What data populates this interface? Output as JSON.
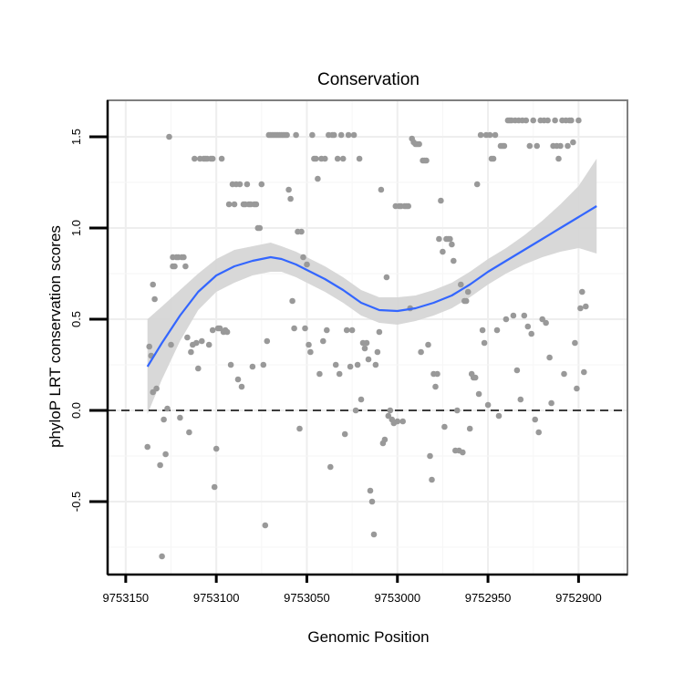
{
  "chart_data": {
    "type": "scatter",
    "title": "Conservation",
    "xlabel": "Genomic Position",
    "ylabel": "phyloP LRT conservation scores",
    "x_reversed": true,
    "xlim": [
      9753160,
      9752873
    ],
    "ylim": [
      -0.9,
      1.7
    ],
    "x_ticks": [
      9753150,
      9753100,
      9753050,
      9753000,
      9752950,
      9752900
    ],
    "x_tick_labels": [
      "9753150",
      "9753100",
      "9753050",
      "9753000",
      "9752950",
      "9752900"
    ],
    "y_ticks": [
      -0.5,
      0.0,
      0.5,
      1.0,
      1.5
    ],
    "y_tick_labels": [
      "-0.5",
      "0.0",
      "0.5",
      "1.0",
      "1.5"
    ],
    "reference_line": {
      "y": 0.0,
      "style": "dashed"
    },
    "grid": true,
    "colors": {
      "points": "#999999",
      "smooth": "#3366ff",
      "band": "#d4d4d4",
      "border": "#7f7f7f"
    },
    "points": [
      [
        9753138,
        -0.2
      ],
      [
        9753137,
        0.35
      ],
      [
        9753136,
        0.3
      ],
      [
        9753135,
        0.1
      ],
      [
        9753135,
        0.69
      ],
      [
        9753134,
        0.61
      ],
      [
        9753133,
        0.12
      ],
      [
        9753131,
        -0.3
      ],
      [
        9753130,
        -0.8
      ],
      [
        9753129,
        -0.05
      ],
      [
        9753128,
        -0.24
      ],
      [
        9753127,
        0.01
      ],
      [
        9753126,
        1.5
      ],
      [
        9753125,
        0.36
      ],
      [
        9753124,
        0.79
      ],
      [
        9753124,
        0.84
      ],
      [
        9753123,
        0.79
      ],
      [
        9753122,
        0.84
      ],
      [
        9753121,
        0.84
      ],
      [
        9753120,
        -0.04
      ],
      [
        9753119,
        0.84
      ],
      [
        9753118,
        0.84
      ],
      [
        9753117,
        0.79
      ],
      [
        9753116,
        0.4
      ],
      [
        9753115,
        -0.12
      ],
      [
        9753114,
        0.32
      ],
      [
        9753113,
        0.36
      ],
      [
        9753112,
        1.38
      ],
      [
        9753111,
        0.37
      ],
      [
        9753110,
        0.23
      ],
      [
        9753109,
        1.38
      ],
      [
        9753108,
        0.38
      ],
      [
        9753107,
        1.38
      ],
      [
        9753106,
        1.38
      ],
      [
        9753105,
        1.38
      ],
      [
        9753104,
        0.36
      ],
      [
        9753103,
        1.38
      ],
      [
        9753102,
        1.38
      ],
      [
        9753102,
        0.44
      ],
      [
        9753101,
        -0.42
      ],
      [
        9753100,
        -0.21
      ],
      [
        9753099,
        0.45
      ],
      [
        9753098,
        0.45
      ],
      [
        9753097,
        1.38
      ],
      [
        9753096,
        0.43
      ],
      [
        9753095,
        0.44
      ],
      [
        9753094,
        0.43
      ],
      [
        9753093,
        1.13
      ],
      [
        9753092,
        0.25
      ],
      [
        9753091,
        1.24
      ],
      [
        9753090,
        1.13
      ],
      [
        9753089,
        1.24
      ],
      [
        9753088,
        0.17
      ],
      [
        9753087,
        1.24
      ],
      [
        9753086,
        0.13
      ],
      [
        9753085,
        1.13
      ],
      [
        9753084,
        1.13
      ],
      [
        9753083,
        1.24
      ],
      [
        9753082,
        1.13
      ],
      [
        9753081,
        1.13
      ],
      [
        9753080,
        0.24
      ],
      [
        9753079,
        1.13
      ],
      [
        9753078,
        1.13
      ],
      [
        9753077,
        1.0
      ],
      [
        9753076,
        1.0
      ],
      [
        9753075,
        1.24
      ],
      [
        9753074,
        0.25
      ],
      [
        9753073,
        -0.63
      ],
      [
        9753072,
        0.38
      ],
      [
        9753071,
        1.51
      ],
      [
        9753070,
        1.51
      ],
      [
        9753069,
        1.51
      ],
      [
        9753068,
        1.51
      ],
      [
        9753067,
        1.51
      ],
      [
        9753066,
        1.51
      ],
      [
        9753065,
        1.51
      ],
      [
        9753064,
        1.51
      ],
      [
        9753063,
        1.51
      ],
      [
        9753062,
        1.51
      ],
      [
        9753061,
        1.51
      ],
      [
        9753060,
        1.21
      ],
      [
        9753059,
        1.16
      ],
      [
        9753058,
        0.6
      ],
      [
        9753057,
        0.45
      ],
      [
        9753056,
        1.51
      ],
      [
        9753055,
        0.98
      ],
      [
        9753054,
        -0.1
      ],
      [
        9753053,
        0.98
      ],
      [
        9753052,
        0.84
      ],
      [
        9753051,
        0.45
      ],
      [
        9753050,
        0.8
      ],
      [
        9753049,
        0.36
      ],
      [
        9753048,
        0.32
      ],
      [
        9753047,
        1.51
      ],
      [
        9753046,
        1.38
      ],
      [
        9753045,
        1.38
      ],
      [
        9753044,
        1.27
      ],
      [
        9753043,
        0.2
      ],
      [
        9753042,
        1.38
      ],
      [
        9753041,
        0.38
      ],
      [
        9753040,
        1.38
      ],
      [
        9753039,
        0.44
      ],
      [
        9753038,
        1.51
      ],
      [
        9753037,
        -0.31
      ],
      [
        9753036,
        1.51
      ],
      [
        9753035,
        1.51
      ],
      [
        9753034,
        0.25
      ],
      [
        9753033,
        1.38
      ],
      [
        9753032,
        0.2
      ],
      [
        9753031,
        1.51
      ],
      [
        9753030,
        1.38
      ],
      [
        9753029,
        -0.13
      ],
      [
        9753028,
        0.44
      ],
      [
        9753027,
        1.51
      ],
      [
        9753026,
        0.24
      ],
      [
        9753025,
        0.44
      ],
      [
        9753024,
        1.51
      ],
      [
        9753023,
        0.0
      ],
      [
        9753022,
        0.25
      ],
      [
        9753021,
        1.38
      ],
      [
        9753020,
        0.06
      ],
      [
        9753019,
        0.37
      ],
      [
        9753018,
        0.34
      ],
      [
        9753017,
        0.37
      ],
      [
        9753016,
        0.28
      ],
      [
        9753015,
        -0.44
      ],
      [
        9753014,
        -0.5
      ],
      [
        9753013,
        -0.68
      ],
      [
        9753012,
        0.25
      ],
      [
        9753011,
        0.32
      ],
      [
        9753010,
        0.43
      ],
      [
        9753009,
        1.21
      ],
      [
        9753008,
        -0.18
      ],
      [
        9753007,
        -0.16
      ],
      [
        9753006,
        0.73
      ],
      [
        9753005,
        -0.03
      ],
      [
        9753004,
        0.0
      ],
      [
        9753003,
        -0.05
      ],
      [
        9753002,
        -0.07
      ],
      [
        9753001,
        1.12
      ],
      [
        9753000,
        -0.06
      ],
      [
        9752999,
        1.12
      ],
      [
        9752998,
        1.12
      ],
      [
        9752997,
        -0.06
      ],
      [
        9752996,
        1.12
      ],
      [
        9752995,
        1.12
      ],
      [
        9752994,
        1.12
      ],
      [
        9752993,
        0.56
      ],
      [
        9752992,
        1.49
      ],
      [
        9752991,
        1.47
      ],
      [
        9752990,
        1.46
      ],
      [
        9752989,
        1.46
      ],
      [
        9752988,
        1.46
      ],
      [
        9752987,
        0.32
      ],
      [
        9752986,
        1.37
      ],
      [
        9752985,
        1.37
      ],
      [
        9752984,
        1.37
      ],
      [
        9752983,
        0.36
      ],
      [
        9752982,
        -0.25
      ],
      [
        9752981,
        -0.38
      ],
      [
        9752980,
        0.2
      ],
      [
        9752979,
        0.13
      ],
      [
        9752978,
        0.2
      ],
      [
        9752977,
        0.94
      ],
      [
        9752976,
        1.15
      ],
      [
        9752975,
        0.87
      ],
      [
        9752974,
        -0.09
      ],
      [
        9752973,
        0.94
      ],
      [
        9752972,
        0.94
      ],
      [
        9752971,
        0.94
      ],
      [
        9752970,
        0.91
      ],
      [
        9752969,
        0.82
      ],
      [
        9752968,
        -0.22
      ],
      [
        9752967,
        0.0
      ],
      [
        9752966,
        -0.22
      ],
      [
        9752965,
        0.69
      ],
      [
        9752964,
        -0.23
      ],
      [
        9752963,
        0.6
      ],
      [
        9752962,
        0.6
      ],
      [
        9752961,
        0.65
      ],
      [
        9752960,
        -0.1
      ],
      [
        9752959,
        0.2
      ],
      [
        9752958,
        0.18
      ],
      [
        9752957,
        0.18
      ],
      [
        9752956,
        1.24
      ],
      [
        9752955,
        0.09
      ],
      [
        9752954,
        1.51
      ],
      [
        9752953,
        0.44
      ],
      [
        9752952,
        0.37
      ],
      [
        9752951,
        1.51
      ],
      [
        9752950,
        0.03
      ],
      [
        9752949,
        1.51
      ],
      [
        9752948,
        1.38
      ],
      [
        9752947,
        1.38
      ],
      [
        9752946,
        1.51
      ],
      [
        9752945,
        0.44
      ],
      [
        9752944,
        -0.03
      ],
      [
        9752943,
        1.45
      ],
      [
        9752942,
        1.45
      ],
      [
        9752941,
        1.45
      ],
      [
        9752940,
        0.5
      ],
      [
        9752939,
        1.59
      ],
      [
        9752938,
        1.59
      ],
      [
        9752937,
        1.59
      ],
      [
        9752936,
        0.52
      ],
      [
        9752935,
        1.59
      ],
      [
        9752934,
        0.22
      ],
      [
        9752933,
        1.59
      ],
      [
        9752932,
        0.06
      ],
      [
        9752931,
        1.59
      ],
      [
        9752930,
        0.52
      ],
      [
        9752929,
        1.59
      ],
      [
        9752928,
        0.46
      ],
      [
        9752927,
        1.45
      ],
      [
        9752926,
        0.42
      ],
      [
        9752925,
        1.59
      ],
      [
        9752924,
        -0.05
      ],
      [
        9752923,
        1.45
      ],
      [
        9752922,
        -0.12
      ],
      [
        9752921,
        1.59
      ],
      [
        9752920,
        0.5
      ],
      [
        9752919,
        1.59
      ],
      [
        9752918,
        0.48
      ],
      [
        9752917,
        1.59
      ],
      [
        9752916,
        0.29
      ],
      [
        9752915,
        0.04
      ],
      [
        9752914,
        1.45
      ],
      [
        9752913,
        1.59
      ],
      [
        9752912,
        1.45
      ],
      [
        9752911,
        1.38
      ],
      [
        9752910,
        1.45
      ],
      [
        9752909,
        1.59
      ],
      [
        9752908,
        0.2
      ],
      [
        9752907,
        1.59
      ],
      [
        9752906,
        1.45
      ],
      [
        9752905,
        1.59
      ],
      [
        9752904,
        1.59
      ],
      [
        9752903,
        1.47
      ],
      [
        9752902,
        0.37
      ],
      [
        9752901,
        0.12
      ],
      [
        9752900,
        1.59
      ],
      [
        9752899,
        0.56
      ],
      [
        9752898,
        0.65
      ],
      [
        9752897,
        0.21
      ],
      [
        9752896,
        0.57
      ]
    ],
    "smooth_line": [
      [
        9753138,
        0.24
      ],
      [
        9753130,
        0.37
      ],
      [
        9753120,
        0.52
      ],
      [
        9753110,
        0.65
      ],
      [
        9753100,
        0.74
      ],
      [
        9753090,
        0.79
      ],
      [
        9753080,
        0.82
      ],
      [
        9753070,
        0.84
      ],
      [
        9753064,
        0.83
      ],
      [
        9753056,
        0.8
      ],
      [
        9753048,
        0.76
      ],
      [
        9753040,
        0.72
      ],
      [
        9753030,
        0.66
      ],
      [
        9753020,
        0.59
      ],
      [
        9753010,
        0.55
      ],
      [
        9753000,
        0.545
      ],
      [
        9752990,
        0.56
      ],
      [
        9752980,
        0.59
      ],
      [
        9752970,
        0.63
      ],
      [
        9752960,
        0.69
      ],
      [
        9752950,
        0.76
      ],
      [
        9752940,
        0.82
      ],
      [
        9752930,
        0.88
      ],
      [
        9752920,
        0.94
      ],
      [
        9752910,
        1.0
      ],
      [
        9752900,
        1.06
      ],
      [
        9752890,
        1.12
      ]
    ],
    "smooth_band": [
      [
        9753138,
        -0.02,
        0.5
      ],
      [
        9753130,
        0.17,
        0.57
      ],
      [
        9753120,
        0.38,
        0.66
      ],
      [
        9753110,
        0.55,
        0.75
      ],
      [
        9753100,
        0.65,
        0.83
      ],
      [
        9753090,
        0.7,
        0.88
      ],
      [
        9753080,
        0.74,
        0.9
      ],
      [
        9753070,
        0.76,
        0.92
      ],
      [
        9753064,
        0.76,
        0.9
      ],
      [
        9753056,
        0.73,
        0.87
      ],
      [
        9753048,
        0.69,
        0.83
      ],
      [
        9753040,
        0.65,
        0.79
      ],
      [
        9753030,
        0.59,
        0.73
      ],
      [
        9753020,
        0.52,
        0.66
      ],
      [
        9753010,
        0.48,
        0.62
      ],
      [
        9753000,
        0.47,
        0.62
      ],
      [
        9752990,
        0.49,
        0.63
      ],
      [
        9752980,
        0.52,
        0.66
      ],
      [
        9752970,
        0.56,
        0.7
      ],
      [
        9752960,
        0.62,
        0.76
      ],
      [
        9752950,
        0.69,
        0.83
      ],
      [
        9752940,
        0.75,
        0.89
      ],
      [
        9752930,
        0.8,
        0.96
      ],
      [
        9752920,
        0.84,
        1.04
      ],
      [
        9752910,
        0.87,
        1.13
      ],
      [
        9752900,
        0.89,
        1.23
      ],
      [
        9752890,
        0.86,
        1.38
      ]
    ]
  }
}
